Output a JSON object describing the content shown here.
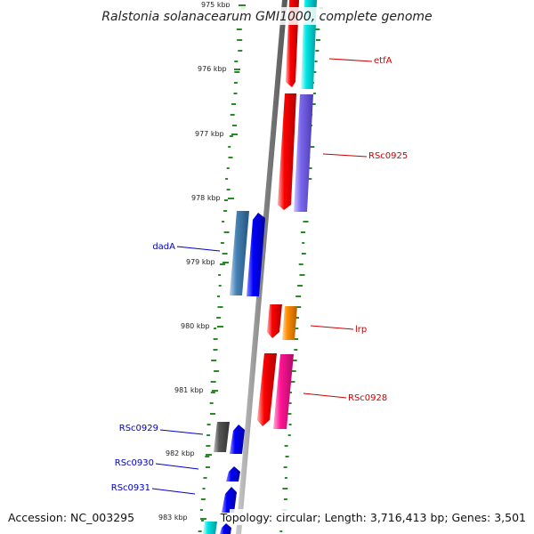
{
  "title": "Ralstonia solanacearum GMI1000, complete genome",
  "footer": {
    "accession": "Accession: NC_003295",
    "summary": "Topology: circular; Length: 3,716,413 bp; Genes: 3,501"
  },
  "ticks": [
    {
      "label": "975 kbp"
    },
    {
      "label": "976 kbp"
    },
    {
      "label": "977 kbp"
    },
    {
      "label": "978 kbp"
    },
    {
      "label": "979 kbp"
    },
    {
      "label": "980 kbp"
    },
    {
      "label": "981 kbp"
    },
    {
      "label": "982 kbp"
    },
    {
      "label": "983 kbp"
    }
  ],
  "gene_labels": [
    {
      "label": "etfA",
      "color": "#cc0000"
    },
    {
      "label": "RSc0925",
      "color": "#cc0000"
    },
    {
      "label": "dadA",
      "color": "#0000cc"
    },
    {
      "label": "lrp",
      "color": "#cc0000"
    },
    {
      "label": "RSc0928",
      "color": "#cc0000"
    },
    {
      "label": "RSc0929",
      "color": "#0000cc"
    },
    {
      "label": "RSc0930",
      "color": "#0000cc"
    },
    {
      "label": "RSc0931",
      "color": "#0000cc"
    }
  ],
  "colors": {
    "backbone": "#888888",
    "dots": "#2a8a2a",
    "red": "#ff0000",
    "cyan": "#00e5e5",
    "purple": "#7b68ee",
    "steelblue": "#4682b4",
    "blue": "#0000ff",
    "orange": "#ff8c00",
    "pink": "#ff1493",
    "gray": "#555555"
  }
}
